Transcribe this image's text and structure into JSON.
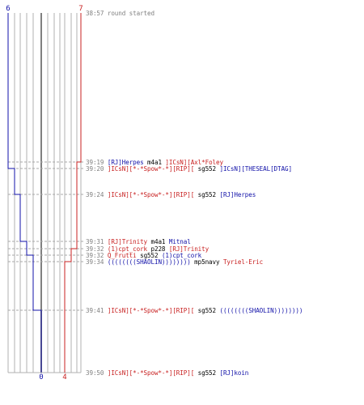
{
  "scores": {
    "top_left": "6",
    "top_right": "7",
    "bottom_left": "0",
    "bottom_right": "4"
  },
  "colors": {
    "team_blue": "#1010a8",
    "team_red": "#c82020",
    "grid": "#b0b0b0",
    "center": "#808080"
  },
  "events": [
    {
      "time": "38:57",
      "parts": [
        {
          "text": "round started",
          "color": "grey"
        }
      ]
    },
    {
      "time": "39:19",
      "parts": [
        {
          "text": "[RJ]Herpes",
          "color": "blue"
        },
        {
          "text": " m4a1 ",
          "color": "black"
        },
        {
          "text": "]ICsN][Axl*Foley",
          "color": "red"
        }
      ]
    },
    {
      "time": "39:20",
      "parts": [
        {
          "text": "]ICsN][*-*Spow*-*][RIP][",
          "color": "red"
        },
        {
          "text": " sg552 ",
          "color": "black"
        },
        {
          "text": "]ICsN][THESEAL[DTAG]",
          "color": "blue"
        }
      ]
    },
    {
      "time": "39:24",
      "parts": [
        {
          "text": "]ICsN][*-*Spow*-*][RIP][",
          "color": "red"
        },
        {
          "text": " sg552 ",
          "color": "black"
        },
        {
          "text": "[RJ]Herpes",
          "color": "blue"
        }
      ]
    },
    {
      "time": "39:31",
      "parts": [
        {
          "text": "[RJ]Trinity",
          "color": "red"
        },
        {
          "text": " m4a1 ",
          "color": "black"
        },
        {
          "text": "Mitnal",
          "color": "blue"
        }
      ]
    },
    {
      "time": "39:32",
      "parts": [
        {
          "text": "(1)cpt_cork",
          "color": "red"
        },
        {
          "text": " p228 ",
          "color": "black"
        },
        {
          "text": "[RJ]Trinity",
          "color": "red"
        }
      ]
    },
    {
      "time": "39:32",
      "parts": [
        {
          "text": "Q_Frutti",
          "color": "red"
        },
        {
          "text": " sg552 ",
          "color": "black"
        },
        {
          "text": "(1)cpt_cork",
          "color": "blue"
        }
      ]
    },
    {
      "time": "39:34",
      "parts": [
        {
          "text": "((((((((SHAOLIN))))))))",
          "color": "blue"
        },
        {
          "text": " mp5navy ",
          "color": "black"
        },
        {
          "text": "Tyriel-Eric",
          "color": "red"
        }
      ]
    },
    {
      "time": "39:41",
      "parts": [
        {
          "text": "]ICsN][*-*Spow*-*][RIP][",
          "color": "red"
        },
        {
          "text": " sg552 ",
          "color": "black"
        },
        {
          "text": "((((((((SHAOLIN))))))))",
          "color": "blue"
        }
      ]
    },
    {
      "time": "39:50",
      "parts": [
        {
          "text": "]ICsN][*-*Spow*-*][RIP][",
          "color": "red"
        },
        {
          "text": " sg552 ",
          "color": "black"
        },
        {
          "text": "[RJ]koin",
          "color": "blue"
        }
      ]
    }
  ]
}
